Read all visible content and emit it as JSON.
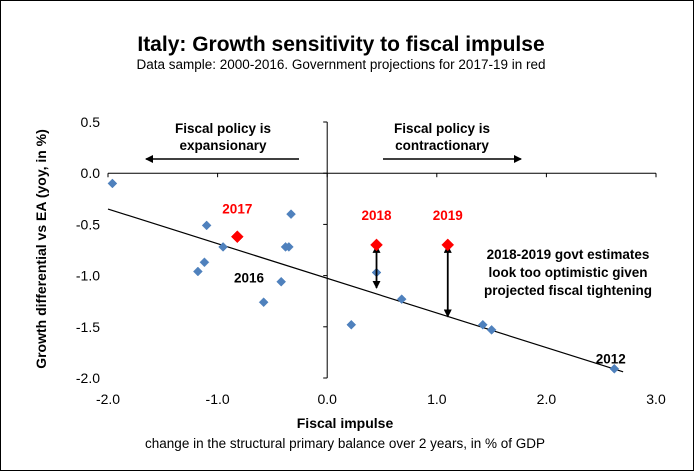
{
  "chart_data": {
    "type": "scatter",
    "title": "Italy: Growth sensitivity to fiscal impulse",
    "subtitle": "Data sample: 2000-2016. Government projections for 2017-19 in red",
    "xlabel": "Fiscal impulse",
    "xlabel_sub": "change in the structural primary balance over 2 years, in % of GDP",
    "ylabel": "Growth differential vs EA (yoy, in %)",
    "xlim": [
      -2.0,
      3.0
    ],
    "ylim": [
      -2.0,
      0.5
    ],
    "x_ticks": [
      -2.0,
      -1.0,
      0.0,
      1.0,
      2.0,
      3.0
    ],
    "y_ticks": [
      0.5,
      0.0,
      -0.5,
      -1.0,
      -1.5,
      -2.0
    ],
    "x_tick_labels": [
      "-2.0",
      "-1.0",
      "0.0",
      "1.0",
      "2.0",
      "3.0"
    ],
    "y_tick_labels": [
      "0.5",
      "0.0",
      "-0.5",
      "-1.0",
      "-1.5",
      "-2.0"
    ],
    "grid": false,
    "colors": {
      "historical": "#4f81bd",
      "projection": "#ff0000",
      "trend": "#000000"
    },
    "historical": [
      {
        "x": -1.96,
        "y": -0.1
      },
      {
        "x": -1.1,
        "y": -0.51
      },
      {
        "x": -1.12,
        "y": -0.87
      },
      {
        "x": -1.18,
        "y": -0.96
      },
      {
        "x": -0.95,
        "y": -0.72
      },
      {
        "x": -0.33,
        "y": -0.4
      },
      {
        "x": -0.35,
        "y": -0.72
      },
      {
        "x": -0.38,
        "y": -0.72
      },
      {
        "x": -0.42,
        "y": -1.06
      },
      {
        "x": -0.58,
        "y": -1.26
      },
      {
        "x": 0.22,
        "y": -1.48
      },
      {
        "x": 0.45,
        "y": -0.97
      },
      {
        "x": 0.68,
        "y": -1.23
      },
      {
        "x": 1.42,
        "y": -1.48
      },
      {
        "x": 1.5,
        "y": -1.53
      },
      {
        "x": 2.62,
        "y": -1.91
      }
    ],
    "projections": [
      {
        "label": "2017",
        "x": -0.82,
        "y": -0.62
      },
      {
        "label": "2018",
        "x": 0.45,
        "y": -0.7
      },
      {
        "label": "2019",
        "x": 1.1,
        "y": -0.7
      }
    ],
    "trendline": {
      "x0": -2.0,
      "y0": -0.35,
      "x1": 2.7,
      "y1": -1.94
    },
    "point_labels": [
      {
        "text": "2016",
        "x": -0.85,
        "y": -0.97
      },
      {
        "text": "2012",
        "x": 2.45,
        "y": -1.76
      }
    ],
    "gap_arrows": [
      {
        "x": 0.45,
        "y_from": -0.7,
        "y_to": -1.12
      },
      {
        "x": 1.1,
        "y_from": -0.7,
        "y_to": -1.4
      }
    ],
    "annotations": {
      "expansionary_line1": "Fiscal policy is",
      "expansionary_line2": "expansionary",
      "contractionary_line1": "Fiscal policy is",
      "contractionary_line2": "contractionary",
      "note_line1": "2018-2019 govt estimates",
      "note_line2": "look too optimistic given",
      "note_line3": "projected fiscal tightening"
    }
  }
}
